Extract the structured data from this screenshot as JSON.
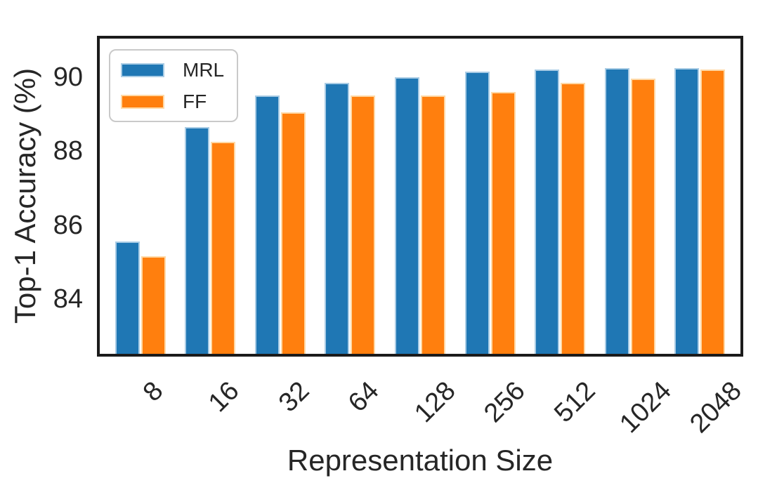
{
  "figure": {
    "background": "#ffffff",
    "text_color": "#262626",
    "spine_color": "#1b1b1b",
    "legend_border_color": "#c9c9c9"
  },
  "chart_data": {
    "type": "bar",
    "xlabel": "Representation Size",
    "ylabel": "Top-1 Accuracy (%)",
    "categories": [
      "8",
      "16",
      "32",
      "64",
      "128",
      "256",
      "512",
      "1024",
      "2048"
    ],
    "series": [
      {
        "name": "MRL",
        "color": "#1f77b4",
        "edge_color": "#a9cce5",
        "values": [
          85.55,
          88.65,
          89.5,
          89.85,
          90.0,
          90.15,
          90.2,
          90.25,
          90.25
        ]
      },
      {
        "name": "FF",
        "color": "#ff7f0e",
        "edge_color": "#ffd9a6",
        "values": [
          85.15,
          88.25,
          89.05,
          89.5,
          89.5,
          89.6,
          89.85,
          89.95,
          90.2
        ]
      }
    ],
    "yticks": [
      84,
      86,
      88,
      90
    ],
    "ylim": [
      82.52,
      91.04
    ],
    "xtick_rotation_deg": 45,
    "legend_position": "upper left",
    "grid": false
  }
}
